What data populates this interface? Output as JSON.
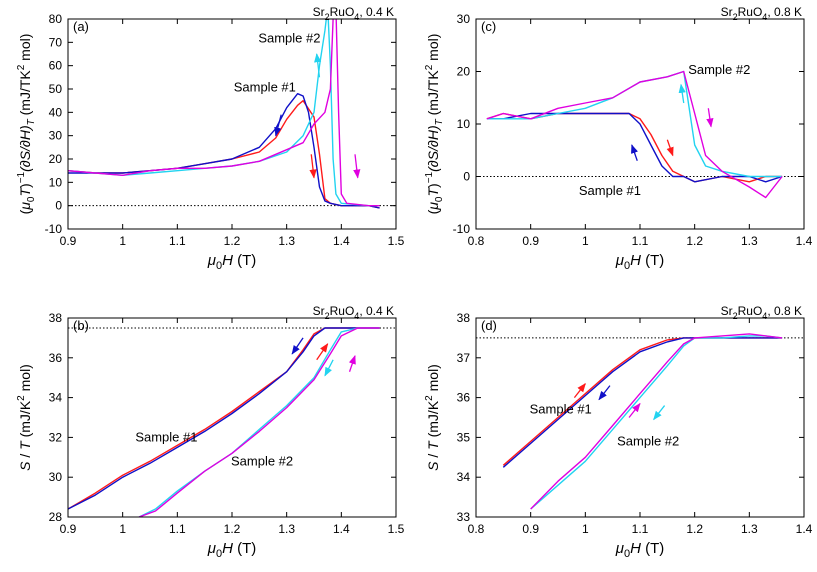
{
  "chart_data": [
    {
      "type": "line",
      "panel_label": "(a)",
      "annotation": {
        "base": "Sr",
        "sub": "2",
        "mid": "RuO",
        "sub2": "4",
        "tail": ", 0.4 K"
      },
      "xlabel": {
        "sym": "μ",
        "sub": "0",
        "var": "H",
        "unit": " (T)"
      },
      "ylabel": {
        "open": "(",
        "sym": "μ",
        "sub": "0",
        "var": "T",
        "close": ")",
        "sup": "−1",
        "mid": "(∂S/∂H)",
        "sub2": "T",
        "unit": " (mJ/TK",
        "sup2": "2",
        "tail": " mol)"
      },
      "xlim": [
        0.9,
        1.5
      ],
      "ylim": [
        -10,
        80
      ],
      "xticks": [
        "0.9",
        "1",
        "1.1",
        "1.2",
        "1.3",
        "1.4",
        "1.5"
      ],
      "yticks": [
        "-10",
        "0",
        "10",
        "20",
        "30",
        "40",
        "50",
        "60",
        "70",
        "80"
      ],
      "reference_line": 0,
      "series": [
        {
          "color": "#ff1a1a",
          "x": [
            0.9,
            0.95,
            1.0,
            1.05,
            1.1,
            1.15,
            1.2,
            1.25,
            1.28,
            1.3,
            1.32,
            1.33,
            1.35,
            1.36,
            1.37,
            1.38,
            1.4,
            1.45,
            1.47
          ],
          "y": [
            15,
            14,
            14,
            15,
            16,
            18,
            20,
            23,
            29,
            37,
            43,
            45,
            38,
            22,
            3,
            1,
            0,
            0,
            -1
          ]
        },
        {
          "color": "#1010c8",
          "x": [
            0.9,
            0.95,
            1.0,
            1.05,
            1.1,
            1.15,
            1.2,
            1.25,
            1.28,
            1.3,
            1.32,
            1.33,
            1.34,
            1.35,
            1.36,
            1.37,
            1.38,
            1.4,
            1.45,
            1.47
          ],
          "y": [
            14,
            14,
            14,
            15,
            16,
            18,
            20,
            25,
            33,
            42,
            48,
            47,
            40,
            25,
            8,
            2,
            1,
            0,
            0,
            -1
          ]
        },
        {
          "color": "#22d3f0",
          "x": [
            0.9,
            0.95,
            1.0,
            1.05,
            1.1,
            1.15,
            1.2,
            1.25,
            1.3,
            1.33,
            1.35,
            1.36,
            1.37,
            1.375,
            1.38,
            1.385,
            1.39,
            1.4,
            1.45,
            1.47
          ],
          "y": [
            15,
            14,
            13,
            14,
            15,
            16,
            17,
            19,
            23,
            30,
            40,
            60,
            75,
            85,
            60,
            20,
            5,
            1,
            0,
            0
          ]
        },
        {
          "color": "#e000e0",
          "x": [
            0.9,
            0.95,
            1.0,
            1.05,
            1.1,
            1.15,
            1.2,
            1.25,
            1.3,
            1.33,
            1.35,
            1.37,
            1.38,
            1.385,
            1.39,
            1.395,
            1.4,
            1.41,
            1.45,
            1.47
          ],
          "y": [
            15,
            14,
            13,
            15,
            16,
            16,
            17,
            19,
            24,
            27,
            35,
            40,
            50,
            80,
            85,
            40,
            5,
            1,
            0,
            0
          ]
        }
      ],
      "labels": [
        {
          "text": "Sample #2",
          "x": 1.305,
          "y": 70
        },
        {
          "text": "Sample #1",
          "x": 1.26,
          "y": 49
        }
      ],
      "arrows": [
        {
          "color": "#1010c8",
          "x1": 1.29,
          "y1": 39,
          "x2": 1.28,
          "y2": 30
        },
        {
          "color": "#ff1a1a",
          "x1": 1.345,
          "y1": 22,
          "x2": 1.35,
          "y2": 12
        },
        {
          "color": "#22d3f0",
          "x1": 1.36,
          "y1": 55,
          "x2": 1.355,
          "y2": 65
        },
        {
          "color": "#e000e0",
          "x1": 1.425,
          "y1": 22,
          "x2": 1.43,
          "y2": 12
        }
      ]
    },
    {
      "type": "line",
      "panel_label": "(c)",
      "annotation": {
        "base": "Sr",
        "sub": "2",
        "mid": "RuO",
        "sub2": "4",
        "tail": ", 0.8 K"
      },
      "xlabel": {
        "sym": "μ",
        "sub": "0",
        "var": "H",
        "unit": " (T)"
      },
      "ylabel": {
        "open": "(",
        "sym": "μ",
        "sub": "0",
        "var": "T",
        "close": ")",
        "sup": "−1",
        "mid": "(∂S/∂H)",
        "sub2": "T",
        "unit": " (mJ/TK",
        "sup2": "2",
        "tail": " mol)"
      },
      "xlim": [
        0.8,
        1.4
      ],
      "ylim": [
        -10,
        30
      ],
      "xticks": [
        "0.8",
        "0.9",
        "1",
        "1.1",
        "1.2",
        "1.3",
        "1.4"
      ],
      "yticks": [
        "-10",
        "0",
        "10",
        "20",
        "30"
      ],
      "reference_line": 0,
      "series": [
        {
          "color": "#ff1a1a",
          "x": [
            0.82,
            0.85,
            0.9,
            0.95,
            1.0,
            1.05,
            1.08,
            1.1,
            1.12,
            1.14,
            1.16,
            1.18,
            1.2,
            1.25,
            1.3,
            1.33,
            1.36
          ],
          "y": [
            11,
            12,
            11,
            12,
            12,
            12,
            12,
            11,
            8,
            4,
            1,
            0,
            -1,
            0,
            -1,
            0,
            0
          ]
        },
        {
          "color": "#1010c8",
          "x": [
            0.82,
            0.85,
            0.9,
            0.95,
            1.0,
            1.05,
            1.08,
            1.1,
            1.12,
            1.14,
            1.16,
            1.18,
            1.2,
            1.25,
            1.3,
            1.33,
            1.36
          ],
          "y": [
            11,
            11,
            12,
            12,
            12,
            12,
            12,
            10,
            6,
            2,
            0,
            0,
            -1,
            0,
            0,
            -1,
            0
          ]
        },
        {
          "color": "#22d3f0",
          "x": [
            0.82,
            0.85,
            0.9,
            0.95,
            1.0,
            1.05,
            1.1,
            1.15,
            1.18,
            1.2,
            1.22,
            1.25,
            1.3,
            1.33,
            1.36
          ],
          "y": [
            11,
            11,
            11,
            12,
            13,
            15,
            18,
            19,
            20,
            6,
            2,
            1,
            0,
            0,
            0
          ]
        },
        {
          "color": "#e000e0",
          "x": [
            0.82,
            0.85,
            0.9,
            0.95,
            1.0,
            1.05,
            1.1,
            1.15,
            1.18,
            1.2,
            1.22,
            1.25,
            1.3,
            1.33,
            1.36
          ],
          "y": [
            11,
            12,
            11,
            13,
            14,
            15,
            18,
            19,
            20,
            12,
            4,
            1,
            -2,
            -4,
            0
          ]
        }
      ],
      "labels": [
        {
          "text": "Sample #2",
          "x": 1.245,
          "y": 19.5
        },
        {
          "text": "Sample #1",
          "x": 1.045,
          "y": -3.5
        }
      ],
      "arrows": [
        {
          "color": "#1010c8",
          "x1": 1.095,
          "y1": 3,
          "x2": 1.085,
          "y2": 6
        },
        {
          "color": "#ff1a1a",
          "x1": 1.15,
          "y1": 7,
          "x2": 1.16,
          "y2": 4
        },
        {
          "color": "#22d3f0",
          "x1": 1.18,
          "y1": 14,
          "x2": 1.175,
          "y2": 17.5
        },
        {
          "color": "#e000e0",
          "x1": 1.225,
          "y1": 13,
          "x2": 1.23,
          "y2": 9.5
        }
      ]
    },
    {
      "type": "line",
      "panel_label": "(b)",
      "annotation": {
        "base": "Sr",
        "sub": "2",
        "mid": "RuO",
        "sub2": "4",
        "tail": ", 0.4 K"
      },
      "xlabel": {
        "sym": "μ",
        "sub": "0",
        "var": "H",
        "unit": " (T)"
      },
      "ylabel": {
        "open": "",
        "sym": "",
        "sub": "",
        "var": "S",
        "close": " / ",
        "sup": "",
        "mid": "T",
        "sub2": "",
        "unit": " (mJ/K",
        "sup2": "2",
        "tail": " mol)"
      },
      "xlim": [
        0.9,
        1.5
      ],
      "ylim": [
        28,
        38
      ],
      "xticks": [
        "0.9",
        "1",
        "1.1",
        "1.2",
        "1.3",
        "1.4",
        "1.5"
      ],
      "yticks": [
        "28",
        "30",
        "32",
        "34",
        "36",
        "38"
      ],
      "reference_line": 37.5,
      "series": [
        {
          "color": "#ff1a1a",
          "x": [
            0.9,
            0.95,
            1.0,
            1.05,
            1.1,
            1.15,
            1.2,
            1.25,
            1.3,
            1.33,
            1.35,
            1.37,
            1.4,
            1.45,
            1.47
          ],
          "y": [
            28.4,
            29.2,
            30.1,
            30.8,
            31.6,
            32.4,
            33.3,
            34.3,
            35.3,
            36.4,
            37.2,
            37.5,
            37.5,
            37.5,
            37.5
          ]
        },
        {
          "color": "#1010c8",
          "x": [
            0.9,
            0.95,
            1.0,
            1.05,
            1.1,
            1.15,
            1.2,
            1.25,
            1.3,
            1.33,
            1.35,
            1.37,
            1.4,
            1.45,
            1.47
          ],
          "y": [
            28.4,
            29.1,
            30.0,
            30.7,
            31.5,
            32.3,
            33.2,
            34.2,
            35.3,
            36.3,
            37.1,
            37.5,
            37.5,
            37.5,
            37.5
          ]
        },
        {
          "color": "#22d3f0",
          "x": [
            1.03,
            1.06,
            1.1,
            1.15,
            1.2,
            1.25,
            1.3,
            1.35,
            1.38,
            1.4,
            1.43,
            1.47
          ],
          "y": [
            28.0,
            28.4,
            29.3,
            30.3,
            31.2,
            32.4,
            33.6,
            35.0,
            36.4,
            37.3,
            37.5,
            37.5
          ]
        },
        {
          "color": "#e000e0",
          "x": [
            1.03,
            1.06,
            1.1,
            1.15,
            1.2,
            1.25,
            1.3,
            1.35,
            1.38,
            1.4,
            1.43,
            1.47
          ],
          "y": [
            28.0,
            28.3,
            29.2,
            30.3,
            31.2,
            32.3,
            33.5,
            34.9,
            36.2,
            37.1,
            37.5,
            37.5
          ]
        }
      ],
      "labels": [
        {
          "text": "Sample #1",
          "x": 1.08,
          "y": 31.8
        },
        {
          "text": "Sample #2",
          "x": 1.255,
          "y": 30.6
        }
      ],
      "arrows": [
        {
          "color": "#1010c8",
          "x1": 1.33,
          "y1": 37.0,
          "x2": 1.31,
          "y2": 36.2
        },
        {
          "color": "#ff1a1a",
          "x1": 1.355,
          "y1": 35.9,
          "x2": 1.375,
          "y2": 36.7
        },
        {
          "color": "#22d3f0",
          "x1": 1.385,
          "y1": 35.9,
          "x2": 1.37,
          "y2": 35.1
        },
        {
          "color": "#e000e0",
          "x1": 1.415,
          "y1": 35.3,
          "x2": 1.425,
          "y2": 36.1
        }
      ]
    },
    {
      "type": "line",
      "panel_label": "(d)",
      "annotation": {
        "base": "Sr",
        "sub": "2",
        "mid": "RuO",
        "sub2": "4",
        "tail": ", 0.8 K"
      },
      "xlabel": {
        "sym": "μ",
        "sub": "0",
        "var": "H",
        "unit": " (T)"
      },
      "ylabel": {
        "open": "",
        "sym": "",
        "sub": "",
        "var": "S",
        "close": " / ",
        "sup": "",
        "mid": "T",
        "sub2": "",
        "unit": " (mJ/K",
        "sup2": "2",
        "tail": " mol)"
      },
      "xlim": [
        0.8,
        1.4
      ],
      "ylim": [
        33,
        38
      ],
      "xticks": [
        "0.8",
        "0.9",
        "1",
        "1.1",
        "1.2",
        "1.3",
        "1.4"
      ],
      "yticks": [
        "33",
        "34",
        "35",
        "36",
        "37",
        "38"
      ],
      "reference_line": 37.5,
      "series": [
        {
          "color": "#ff1a1a",
          "x": [
            0.85,
            0.9,
            0.95,
            1.0,
            1.05,
            1.1,
            1.15,
            1.18,
            1.2,
            1.25,
            1.3,
            1.33,
            1.36
          ],
          "y": [
            34.3,
            34.9,
            35.5,
            36.1,
            36.7,
            37.2,
            37.45,
            37.5,
            37.5,
            37.5,
            37.5,
            37.5,
            37.5
          ]
        },
        {
          "color": "#1010c8",
          "x": [
            0.85,
            0.9,
            0.95,
            1.0,
            1.05,
            1.1,
            1.15,
            1.18,
            1.2,
            1.25,
            1.3,
            1.33,
            1.36
          ],
          "y": [
            34.25,
            34.85,
            35.45,
            36.05,
            36.65,
            37.15,
            37.4,
            37.5,
            37.5,
            37.5,
            37.5,
            37.5,
            37.5
          ]
        },
        {
          "color": "#22d3f0",
          "x": [
            0.9,
            0.95,
            1.0,
            1.05,
            1.1,
            1.15,
            1.18,
            1.2,
            1.25,
            1.3,
            1.33,
            1.36
          ],
          "y": [
            33.2,
            33.8,
            34.4,
            35.2,
            36.0,
            36.8,
            37.3,
            37.5,
            37.5,
            37.55,
            37.55,
            37.5
          ]
        },
        {
          "color": "#e000e0",
          "x": [
            0.9,
            0.95,
            1.0,
            1.05,
            1.1,
            1.15,
            1.18,
            1.2,
            1.25,
            1.3,
            1.33,
            1.36
          ],
          "y": [
            33.2,
            33.9,
            34.5,
            35.3,
            36.1,
            36.9,
            37.35,
            37.5,
            37.55,
            37.6,
            37.55,
            37.5
          ]
        }
      ],
      "labels": [
        {
          "text": "Sample #1",
          "x": 0.955,
          "y": 35.6
        },
        {
          "text": "Sample #2",
          "x": 1.115,
          "y": 34.8
        }
      ],
      "arrows": [
        {
          "color": "#ff1a1a",
          "x1": 0.98,
          "y1": 36.0,
          "x2": 1.0,
          "y2": 36.35
        },
        {
          "color": "#1010c8",
          "x1": 1.045,
          "y1": 36.3,
          "x2": 1.025,
          "y2": 35.95
        },
        {
          "color": "#e000e0",
          "x1": 1.08,
          "y1": 35.5,
          "x2": 1.1,
          "y2": 35.85
        },
        {
          "color": "#22d3f0",
          "x1": 1.145,
          "y1": 35.8,
          "x2": 1.125,
          "y2": 35.45
        }
      ]
    }
  ]
}
